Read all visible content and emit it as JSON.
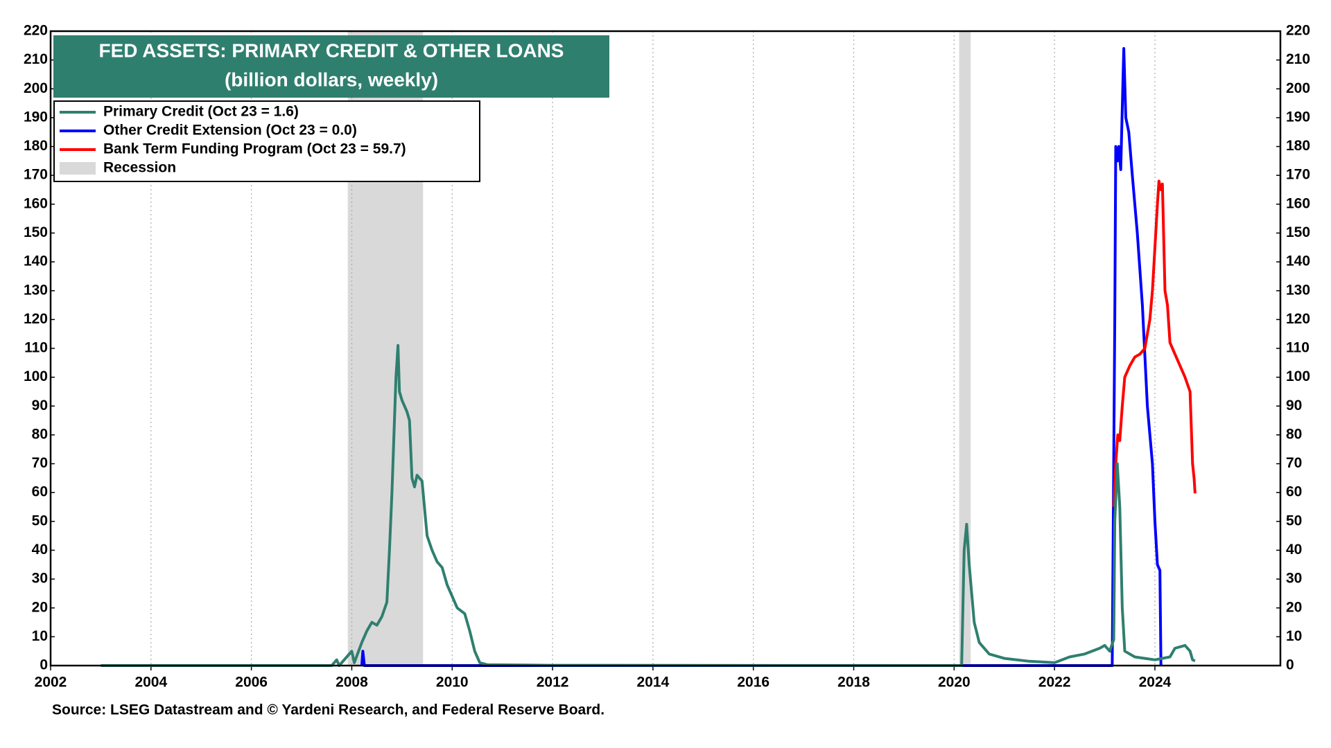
{
  "chart_data": {
    "type": "line",
    "title": "FED ASSETS: PRIMARY CREDIT & OTHER LOANS",
    "subtitle": "(billion dollars, weekly)",
    "source": "Source: LSEG Datastream and © Yardeni Research, and Federal Reserve Board.",
    "xlim": [
      2002,
      2026.5
    ],
    "xticks": [
      2002,
      2004,
      2006,
      2008,
      2010,
      2012,
      2014,
      2016,
      2018,
      2020,
      2022,
      2024
    ],
    "ylim": [
      0,
      220
    ],
    "yticks": [
      0,
      10,
      20,
      30,
      40,
      50,
      60,
      70,
      80,
      90,
      100,
      110,
      120,
      130,
      140,
      150,
      160,
      170,
      180,
      190,
      200,
      210,
      220
    ],
    "y2lim": [
      0,
      220
    ],
    "y2ticks": [
      0,
      10,
      20,
      30,
      40,
      50,
      60,
      70,
      80,
      90,
      100,
      110,
      120,
      130,
      140,
      150,
      160,
      170,
      180,
      190,
      200,
      210,
      220
    ],
    "grid": "x",
    "legend": "upper left",
    "recession": {
      "name": "Recession",
      "color": "#d9d9d9",
      "periods": [
        [
          2007.92,
          2009.42
        ],
        [
          2020.1,
          2020.33
        ]
      ]
    },
    "series": [
      {
        "name": "Primary Credit (Oct 23 = 1.6)",
        "color": "#2f7f6f",
        "x": [
          2003,
          2007.6,
          2007.7,
          2007.75,
          2007.9,
          2008.0,
          2008.05,
          2008.2,
          2008.3,
          2008.4,
          2008.5,
          2008.6,
          2008.7,
          2008.75,
          2008.8,
          2008.85,
          2008.88,
          2008.92,
          2008.95,
          2009.0,
          2009.1,
          2009.15,
          2009.2,
          2009.25,
          2009.3,
          2009.4,
          2009.5,
          2009.6,
          2009.7,
          2009.8,
          2009.9,
          2010.0,
          2010.1,
          2010.25,
          2010.35,
          2010.45,
          2010.55,
          2010.7,
          2012,
          2020.15,
          2020.2,
          2020.25,
          2020.3,
          2020.4,
          2020.5,
          2020.7,
          2021,
          2021.5,
          2022,
          2022.3,
          2022.6,
          2022.9,
          2023.0,
          2023.1,
          2023.18,
          2023.2,
          2023.25,
          2023.3,
          2023.35,
          2023.4,
          2023.6,
          2023.8,
          2024.0,
          2024.3,
          2024.4,
          2024.6,
          2024.7,
          2024.75,
          2024.8
        ],
        "values": [
          0,
          0,
          2,
          0,
          3,
          5,
          1,
          8,
          12,
          15,
          14,
          17,
          22,
          40,
          60,
          85,
          100,
          111,
          95,
          92,
          88,
          85,
          65,
          62,
          66,
          64,
          45,
          40,
          36,
          34,
          28,
          24,
          20,
          18,
          12,
          5,
          1,
          0.3,
          0.1,
          0,
          40,
          49,
          35,
          15,
          8,
          4,
          2.5,
          1.5,
          1,
          3,
          4,
          6,
          7,
          5,
          9,
          50,
          70,
          55,
          20,
          5,
          3,
          2.5,
          2,
          3,
          6,
          7,
          5,
          2,
          1.6
        ]
      },
      {
        "name": "Other Credit Extension (Oct 23 = 0.0)",
        "color": "#0000ff",
        "x": [
          2008.2,
          2008.22,
          2008.25,
          2023.15,
          2023.2,
          2023.22,
          2023.25,
          2023.28,
          2023.32,
          2023.36,
          2023.38,
          2023.42,
          2023.48,
          2023.55,
          2023.65,
          2023.75,
          2023.85,
          2023.95,
          2024.0,
          2024.05,
          2024.1,
          2024.12
        ],
        "values": [
          0,
          5,
          0,
          0,
          120,
          180,
          175,
          180,
          172,
          200,
          214,
          190,
          185,
          170,
          150,
          125,
          90,
          70,
          50,
          35,
          33,
          0
        ]
      },
      {
        "name": "Bank Term Funding Program (Oct 23 = 59.7)",
        "color": "#ff0000",
        "x": [
          2023.18,
          2023.22,
          2023.26,
          2023.3,
          2023.35,
          2023.4,
          2023.5,
          2023.6,
          2023.7,
          2023.8,
          2023.85,
          2023.9,
          2023.95,
          2024.0,
          2024.05,
          2024.08,
          2024.12,
          2024.15,
          2024.2,
          2024.25,
          2024.3,
          2024.4,
          2024.5,
          2024.6,
          2024.7,
          2024.75,
          2024.78,
          2024.8
        ],
        "values": [
          55,
          70,
          80,
          78,
          90,
          100,
          104,
          107,
          108,
          110,
          115,
          120,
          130,
          145,
          160,
          168,
          165,
          167,
          130,
          125,
          112,
          108,
          104,
          100,
          95,
          70,
          65,
          59.7
        ]
      }
    ]
  }
}
